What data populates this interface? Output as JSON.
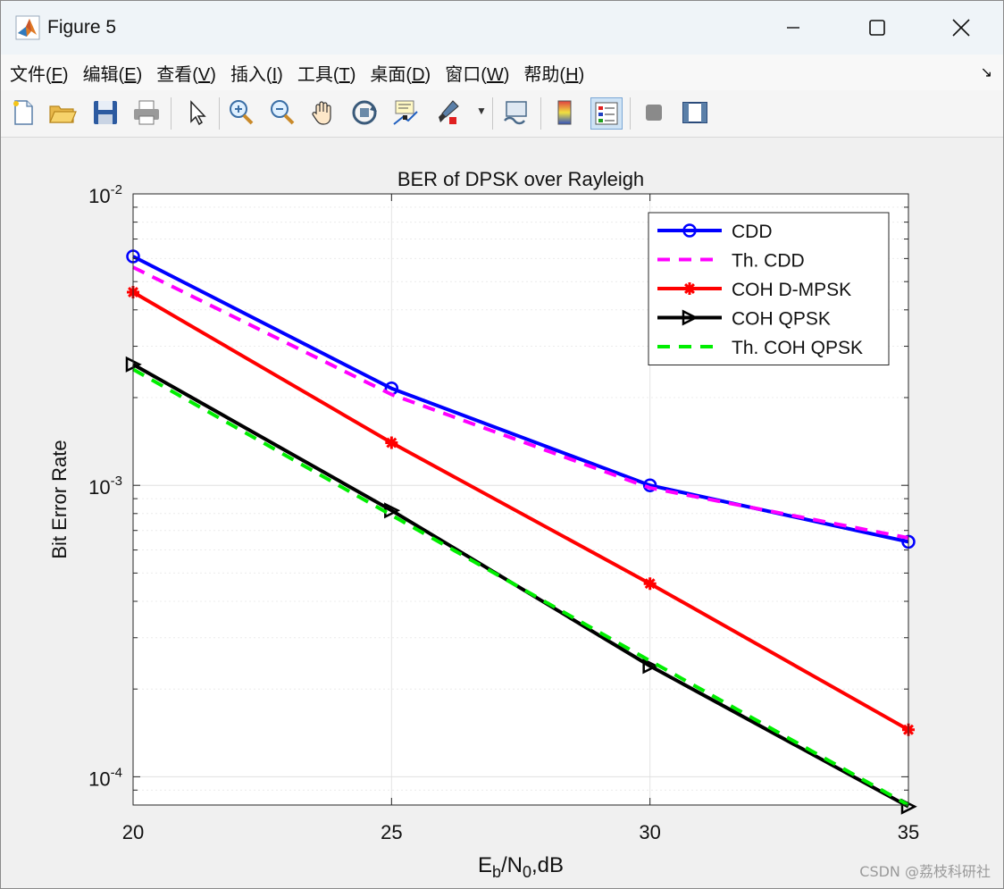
{
  "window": {
    "title": "Figure 5"
  },
  "menu": [
    {
      "label": "文件(",
      "key": "F",
      "tail": ")"
    },
    {
      "label": "编辑(",
      "key": "E",
      "tail": ")"
    },
    {
      "label": "查看(",
      "key": "V",
      "tail": ")"
    },
    {
      "label": "插入(",
      "key": "I",
      "tail": ")"
    },
    {
      "label": "工具(",
      "key": "T",
      "tail": ")"
    },
    {
      "label": "桌面(",
      "key": "D",
      "tail": ")"
    },
    {
      "label": "窗口(",
      "key": "W",
      "tail": ")"
    },
    {
      "label": "帮助(",
      "key": "H",
      "tail": ")"
    }
  ],
  "toolbar": {
    "tools": [
      "new-figure-icon",
      "open-file-icon",
      "save-icon",
      "print-icon",
      "pointer-icon",
      "zoom-in-icon",
      "zoom-out-icon",
      "pan-icon",
      "rotate-3d-icon",
      "data-cursor-icon",
      "brush-icon",
      "link-plot-icon",
      "colorbar-icon",
      "legend-icon",
      "hide-plot-tools-icon",
      "show-plot-tools-icon"
    ]
  },
  "watermark": "CSDN @荔枝科研社",
  "chart_data": {
    "type": "line",
    "title": "BER of DPSK over Rayleigh",
    "xlabel_main": "E",
    "xlabel_sub1": "b",
    "xlabel_mid": "/N",
    "xlabel_sub2": "0",
    "xlabel_tail": ",dB",
    "ylabel": "Bit Error Rate",
    "x": [
      20,
      25,
      30,
      35
    ],
    "xlim": [
      20,
      35
    ],
    "ylim": [
      8e-05,
      0.01
    ],
    "yscale": "log",
    "grid": true,
    "legend_position": "top-right",
    "xtick_labels": [
      "20",
      "25",
      "30",
      "35"
    ],
    "ytick_labels": [
      {
        "base": "10",
        "exp": "-2",
        "value": 0.01
      },
      {
        "base": "10",
        "exp": "-3",
        "value": 0.001
      },
      {
        "base": "10",
        "exp": "-4",
        "value": 0.0001
      }
    ],
    "series": [
      {
        "name": "CDD",
        "values": [
          0.0061,
          0.00215,
          0.001,
          0.00064
        ],
        "color": "#0000ff",
        "dash": "",
        "marker": "circle"
      },
      {
        "name": "Th. CDD",
        "values": [
          0.0056,
          0.00205,
          0.00098,
          0.00066
        ],
        "color": "#ff00ff",
        "dash": "14,10",
        "marker": "none"
      },
      {
        "name": "COH D-MPSK",
        "values": [
          0.0046,
          0.0014,
          0.00046,
          0.000145
        ],
        "color": "#ff0000",
        "dash": "",
        "marker": "star"
      },
      {
        "name": "COH QPSK",
        "values": [
          0.0026,
          0.00082,
          0.00024,
          7.9e-05
        ],
        "color": "#000000",
        "dash": "",
        "marker": "triangle-right"
      },
      {
        "name": "Th. COH QPSK",
        "values": [
          0.0025,
          0.00079,
          0.00025,
          8e-05
        ],
        "color": "#00ee00",
        "dash": "14,10",
        "marker": "none"
      }
    ]
  }
}
